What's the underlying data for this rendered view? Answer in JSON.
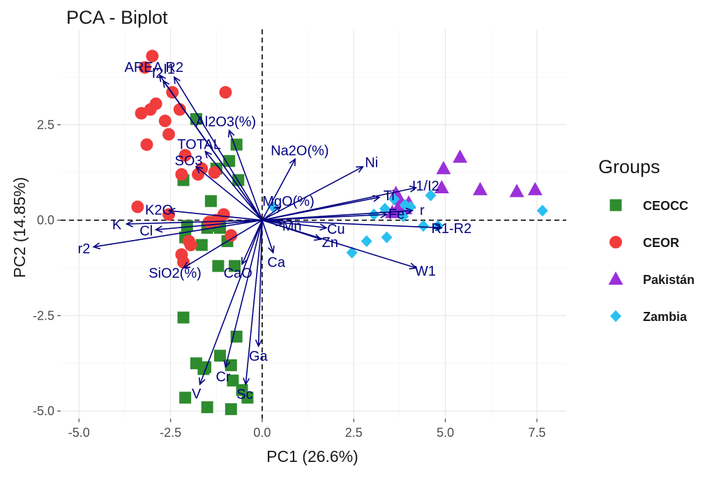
{
  "chart_data": {
    "type": "scatter",
    "title": "PCA - Biplot",
    "xlabel": "PC1 (26.6%)",
    "ylabel": "PC2 (14.85%)",
    "xlim": [
      -5.5,
      8.3
    ],
    "ylim": [
      -5.2,
      5.0
    ],
    "xticks": [
      -5.0,
      -2.5,
      0.0,
      2.5,
      5.0,
      7.5
    ],
    "yticks": [
      -5.0,
      -2.5,
      0.0,
      2.5
    ],
    "xtick_labels": [
      "-5.0",
      "-2.5",
      "0.0",
      "2.5",
      "5.0",
      "7.5"
    ],
    "ytick_labels": [
      "-5.0",
      "-2.5",
      "0.0",
      "2.5"
    ],
    "zero_lines": true,
    "grid": true,
    "legend": {
      "title": "Groups",
      "placement": "right",
      "entries": [
        {
          "label": "CEOCC",
          "shape": "square",
          "color": "#2e8b2e"
        },
        {
          "label": "CEOR",
          "shape": "circle",
          "color": "#f03c3c"
        },
        {
          "label": "Pakistán",
          "shape": "triangle",
          "color": "#9b30d9"
        },
        {
          "label": "Zambia",
          "shape": "diamond",
          "color": "#29c0f0"
        }
      ]
    },
    "series": [
      {
        "name": "CEOCC",
        "shape": "square",
        "color": "#2e8b2e",
        "points": [
          [
            -1.8,
            2.65
          ],
          [
            -0.7,
            1.98
          ],
          [
            -0.9,
            1.55
          ],
          [
            -1.25,
            1.35
          ],
          [
            -0.65,
            1.05
          ],
          [
            -2.15,
            1.05
          ],
          [
            -1.4,
            0.5
          ],
          [
            -2.05,
            -0.15
          ],
          [
            -1.5,
            -0.2
          ],
          [
            -1.3,
            -0.15
          ],
          [
            -0.95,
            -0.55
          ],
          [
            -1.65,
            -0.65
          ],
          [
            -2.1,
            -0.45
          ],
          [
            -1.15,
            -0.2
          ],
          [
            -1.2,
            -1.2
          ],
          [
            -0.75,
            -1.2
          ],
          [
            -2.15,
            -2.55
          ],
          [
            -0.7,
            -3.05
          ],
          [
            -1.8,
            -3.75
          ],
          [
            -1.6,
            -3.9
          ],
          [
            -1.15,
            -3.55
          ],
          [
            -0.85,
            -3.8
          ],
          [
            -0.8,
            -4.2
          ],
          [
            -0.55,
            -4.45
          ],
          [
            -0.4,
            -4.65
          ],
          [
            -2.1,
            -4.65
          ],
          [
            -1.5,
            -4.9
          ],
          [
            -0.85,
            -4.95
          ],
          [
            -1.55,
            -3.85
          ]
        ]
      },
      {
        "name": "CEOR",
        "shape": "circle",
        "color": "#f03c3c",
        "points": [
          [
            -3.0,
            4.3
          ],
          [
            -3.2,
            4.0
          ],
          [
            -2.45,
            3.35
          ],
          [
            -1.0,
            3.35
          ],
          [
            -2.9,
            3.05
          ],
          [
            -3.05,
            2.9
          ],
          [
            -2.25,
            2.9
          ],
          [
            -3.3,
            2.8
          ],
          [
            -2.65,
            2.6
          ],
          [
            -2.55,
            2.25
          ],
          [
            -3.15,
            1.98
          ],
          [
            -2.1,
            1.7
          ],
          [
            -1.65,
            1.35
          ],
          [
            -1.3,
            1.25
          ],
          [
            -2.2,
            1.2
          ],
          [
            -1.75,
            1.2
          ],
          [
            -3.4,
            0.35
          ],
          [
            -2.55,
            0.15
          ],
          [
            -1.05,
            0.15
          ],
          [
            -1.25,
            0.0
          ],
          [
            -1.45,
            -0.05
          ],
          [
            -0.85,
            -0.4
          ],
          [
            -2.0,
            -0.55
          ],
          [
            -1.95,
            -0.65
          ],
          [
            -2.2,
            -0.9
          ],
          [
            -2.15,
            -1.1
          ]
        ]
      },
      {
        "name": "Pakistán",
        "shape": "triangle",
        "color": "#9b30d9",
        "points": [
          [
            5.4,
            1.65
          ],
          [
            4.95,
            1.35
          ],
          [
            4.9,
            0.85
          ],
          [
            5.95,
            0.8
          ],
          [
            6.95,
            0.75
          ],
          [
            7.45,
            0.8
          ],
          [
            3.65,
            0.7
          ],
          [
            3.75,
            0.55
          ],
          [
            3.7,
            0.3
          ],
          [
            3.55,
            0.2
          ],
          [
            4.0,
            0.45
          ],
          [
            3.9,
            0.3
          ]
        ]
      },
      {
        "name": "Zambia",
        "shape": "diamond",
        "color": "#29c0f0",
        "points": [
          [
            0.3,
            0.35
          ],
          [
            4.6,
            0.65
          ],
          [
            3.35,
            0.3
          ],
          [
            3.05,
            0.15
          ],
          [
            3.85,
            0.1
          ],
          [
            4.05,
            0.35
          ],
          [
            4.4,
            -0.15
          ],
          [
            4.8,
            -0.15
          ],
          [
            3.4,
            -0.45
          ],
          [
            2.85,
            -0.55
          ],
          [
            2.45,
            -0.85
          ],
          [
            7.65,
            0.25
          ],
          [
            3.6,
            0.55
          ],
          [
            3.9,
            0.4
          ]
        ]
      }
    ],
    "loadings": [
      {
        "label": "AREA R2",
        "x": -2.8,
        "y": 3.8
      },
      {
        "label": "I1",
        "x": -2.4,
        "y": 3.75
      },
      {
        "label": "I2",
        "x": -2.7,
        "y": 3.65
      },
      {
        "label": "TOTAL",
        "x": -1.55,
        "y": 1.8
      },
      {
        "label": "Al2O3(%)",
        "x": -0.9,
        "y": 2.35
      },
      {
        "label": "SO3",
        "x": -1.8,
        "y": 1.4
      },
      {
        "label": "K2O",
        "x": -2.55,
        "y": 0.25
      },
      {
        "label": "K",
        "x": -3.7,
        "y": -0.1
      },
      {
        "label": "Cl",
        "x": -2.9,
        "y": -0.25
      },
      {
        "label": "r2",
        "x": -4.6,
        "y": -0.7
      },
      {
        "label": "SiO2(%)",
        "x": -2.15,
        "y": -1.25
      },
      {
        "label": "CaO",
        "x": -0.55,
        "y": -1.15
      },
      {
        "label": "Ca",
        "x": 0.3,
        "y": -0.85
      },
      {
        "label": "Na2O(%)",
        "x": 0.9,
        "y": 1.6
      },
      {
        "label": "Ni",
        "x": 2.75,
        "y": 1.4
      },
      {
        "label": "MgO(%)",
        "x": 0.5,
        "y": 0.35
      },
      {
        "label": "Mn",
        "x": 0.55,
        "y": -0.1
      },
      {
        "label": "Cu",
        "x": 1.75,
        "y": -0.2
      },
      {
        "label": "Zn",
        "x": 1.6,
        "y": -0.5
      },
      {
        "label": "Ti",
        "x": 3.2,
        "y": 0.6
      },
      {
        "label": "I1/I2",
        "x": 4.2,
        "y": 0.85
      },
      {
        "label": "Fe",
        "x": 3.4,
        "y": 0.15
      },
      {
        "label": "r",
        "x": 4.1,
        "y": 0.25
      },
      {
        "label": "R1-R2",
        "x": 4.9,
        "y": -0.2
      },
      {
        "label": "W1",
        "x": 4.2,
        "y": -1.25
      },
      {
        "label": "Ga",
        "x": -0.1,
        "y": -3.3
      },
      {
        "label": "Cr",
        "x": -1.0,
        "y": -3.85
      },
      {
        "label": "Sc",
        "x": -0.45,
        "y": -4.3
      },
      {
        "label": "V",
        "x": -1.7,
        "y": -4.3
      }
    ]
  }
}
